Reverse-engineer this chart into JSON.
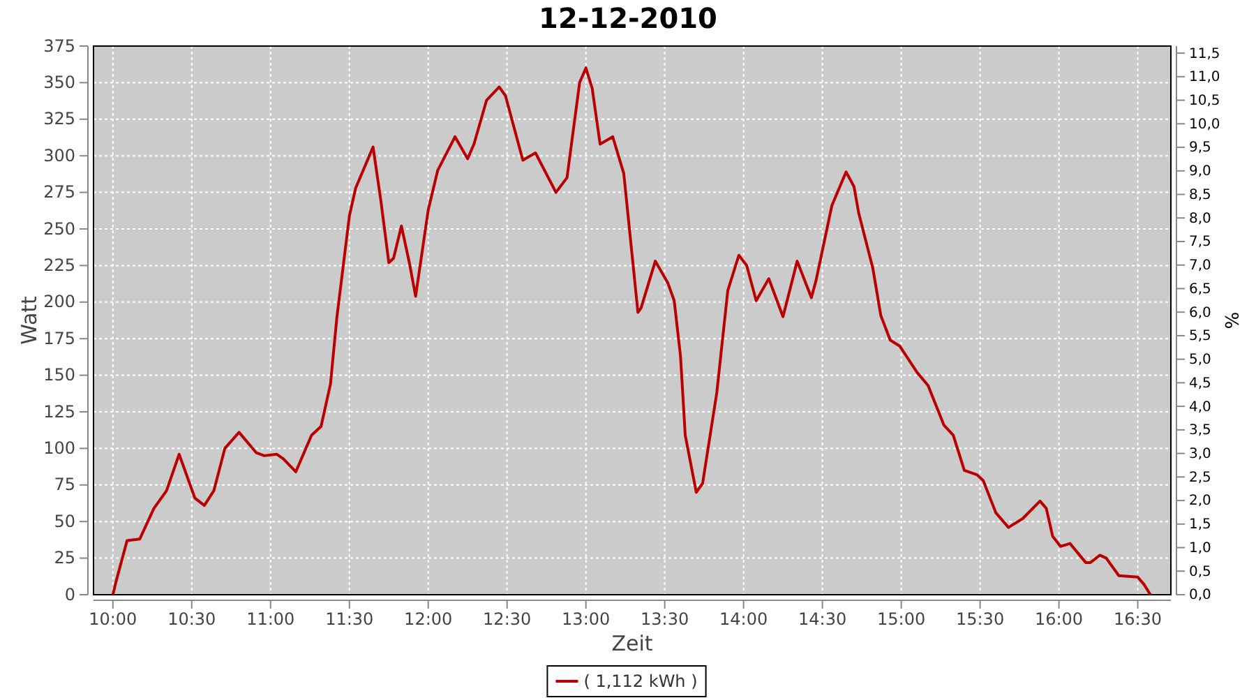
{
  "chart_data": {
    "type": "line",
    "title": "12-12-2010",
    "xlabel": "Zeit",
    "ylabel": "Watt",
    "y2label": "%",
    "xlim": [
      9.877,
      16.71
    ],
    "xticks": [
      {
        "value": 10,
        "label": "10:00"
      },
      {
        "value": 10.5,
        "label": "10:30"
      },
      {
        "value": 11,
        "label": "11:00"
      },
      {
        "value": 11.5,
        "label": "11:30"
      },
      {
        "value": 12,
        "label": "12:00"
      },
      {
        "value": 12.5,
        "label": "12:30"
      },
      {
        "value": 13,
        "label": "13:00"
      },
      {
        "value": 13.5,
        "label": "13:30"
      },
      {
        "value": 14,
        "label": "14:00"
      },
      {
        "value": 14.5,
        "label": "14:30"
      },
      {
        "value": 15,
        "label": "15:00"
      },
      {
        "value": 15.5,
        "label": "15:30"
      },
      {
        "value": 16,
        "label": "16:00"
      },
      {
        "value": 16.5,
        "label": "16:30"
      }
    ],
    "ylim": [
      0,
      375
    ],
    "yticks": [
      0,
      25,
      50,
      75,
      100,
      125,
      150,
      175,
      200,
      225,
      250,
      275,
      300,
      325,
      350,
      375
    ],
    "y2lim": [
      0,
      11.65
    ],
    "y2ticks": [
      {
        "value": 0,
        "label": "0,0"
      },
      {
        "value": 0.5,
        "label": "0,5"
      },
      {
        "value": 1,
        "label": "1,0"
      },
      {
        "value": 1.5,
        "label": "1,5"
      },
      {
        "value": 2,
        "label": "2,0"
      },
      {
        "value": 2.5,
        "label": "2,5"
      },
      {
        "value": 3,
        "label": "3,0"
      },
      {
        "value": 3.5,
        "label": "3,5"
      },
      {
        "value": 4,
        "label": "4,0"
      },
      {
        "value": 4.5,
        "label": "4,5"
      },
      {
        "value": 5,
        "label": "5,0"
      },
      {
        "value": 5.5,
        "label": "5,5"
      },
      {
        "value": 6,
        "label": "6,0"
      },
      {
        "value": 6.5,
        "label": "6,5"
      },
      {
        "value": 7,
        "label": "7,0"
      },
      {
        "value": 7.5,
        "label": "7,5"
      },
      {
        "value": 8,
        "label": "8,0"
      },
      {
        "value": 8.5,
        "label": "8,5"
      },
      {
        "value": 9,
        "label": "9,0"
      },
      {
        "value": 9.5,
        "label": "9,5"
      },
      {
        "value": 10,
        "label": "10,0"
      },
      {
        "value": 10.5,
        "label": "10,5"
      },
      {
        "value": 11,
        "label": "11,0"
      },
      {
        "value": 11.5,
        "label": "11,5"
      }
    ],
    "grid": true,
    "legend": "bottom",
    "line_style": "solid",
    "marker": "none",
    "series": [
      {
        "name": "( 1,112 kWh )",
        "color": "#bb0000",
        "x": [
          10.0,
          10.02,
          10.09,
          10.17,
          10.26,
          10.34,
          10.42,
          10.52,
          10.58,
          10.64,
          10.71,
          10.8,
          10.91,
          10.96,
          11.04,
          11.08,
          11.16,
          11.26,
          11.32,
          11.38,
          11.42,
          11.5,
          11.54,
          11.65,
          11.7,
          11.75,
          11.78,
          11.83,
          11.88,
          11.92,
          12.0,
          12.06,
          12.17,
          12.25,
          12.29,
          12.37,
          12.45,
          12.49,
          12.6,
          12.68,
          12.81,
          12.88,
          12.96,
          13.0,
          13.04,
          13.09,
          13.17,
          13.24,
          13.33,
          13.35,
          13.44,
          13.52,
          13.56,
          13.6,
          13.63,
          13.7,
          13.74,
          13.83,
          13.9,
          13.97,
          14.02,
          14.08,
          14.16,
          14.25,
          14.34,
          14.43,
          14.46,
          14.56,
          14.65,
          14.7,
          14.73,
          14.82,
          14.87,
          14.93,
          14.99,
          15.1,
          15.17,
          15.27,
          15.33,
          15.4,
          15.48,
          15.52,
          15.6,
          15.68,
          15.77,
          15.88,
          15.92,
          15.96,
          16.01,
          16.07,
          16.17,
          16.2,
          16.26,
          16.3,
          16.38,
          16.5,
          16.54,
          16.58
        ],
        "values": [
          0,
          9,
          37,
          38,
          59,
          71,
          96,
          66,
          61,
          71,
          100,
          111,
          97,
          95,
          96,
          93,
          84,
          109,
          115,
          144,
          189,
          259,
          278,
          306,
          269,
          227,
          230,
          252,
          227,
          204,
          263,
          290,
          313,
          298,
          308,
          338,
          347,
          341,
          297,
          302,
          275,
          285,
          350,
          360,
          346,
          308,
          313,
          288,
          193,
          196,
          228,
          213,
          201,
          163,
          109,
          70,
          76,
          138,
          208,
          232,
          225,
          201,
          216,
          190,
          228,
          203,
          215,
          266,
          289,
          279,
          261,
          223,
          191,
          174,
          170,
          152,
          143,
          116,
          109,
          85,
          82,
          78,
          56,
          46,
          52,
          64,
          59,
          40,
          33,
          35,
          22,
          22,
          27,
          25,
          13,
          12,
          7,
          0
        ]
      }
    ]
  }
}
